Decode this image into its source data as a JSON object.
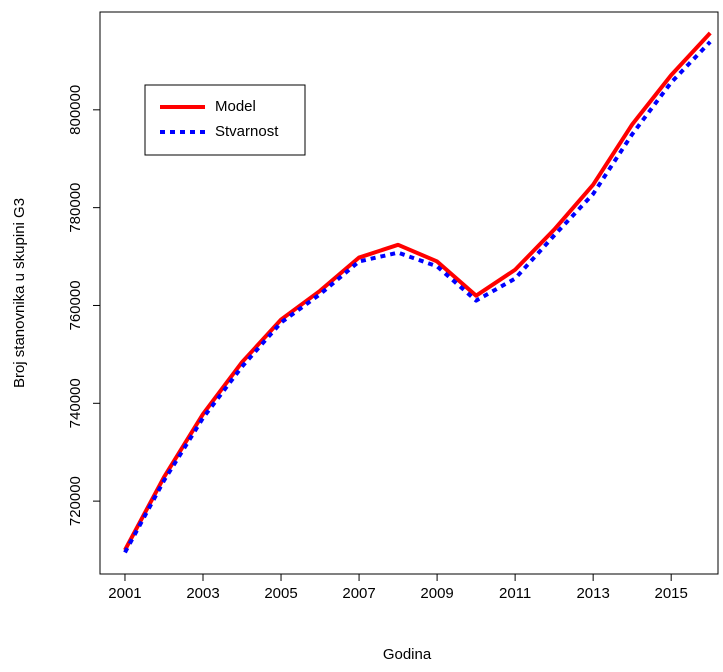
{
  "chart_data": {
    "type": "line",
    "x_label": "Godina",
    "y_label": "Broj stanovnika u skupini G3",
    "x": [
      2001,
      2002,
      2003,
      2004,
      2005,
      2006,
      2007,
      2008,
      2009,
      2010,
      2011,
      2012,
      2013,
      2014,
      2015,
      2016
    ],
    "series": [
      {
        "name": "Model",
        "color": "#ff0000",
        "dash": "solid",
        "values": [
          710000,
          724900,
          737800,
          748400,
          757100,
          763000,
          769800,
          772400,
          769000,
          762000,
          767300,
          775500,
          784700,
          797000,
          807100,
          815700
        ]
      },
      {
        "name": "Stvarnost",
        "color": "#0000ff",
        "dash": "dotted",
        "values": [
          709500,
          724200,
          737000,
          747500,
          756500,
          762300,
          769000,
          770800,
          768000,
          761000,
          765500,
          774300,
          782800,
          795000,
          805600,
          813900
        ]
      }
    ],
    "xlim": [
      2000.36,
      2016.2
    ],
    "xticks": [
      2001,
      2003,
      2005,
      2007,
      2009,
      2011,
      2013,
      2015
    ],
    "ylim": [
      705100,
      820000
    ],
    "yticks": [
      720000,
      740000,
      760000,
      780000,
      800000
    ],
    "legend": "top-left"
  }
}
